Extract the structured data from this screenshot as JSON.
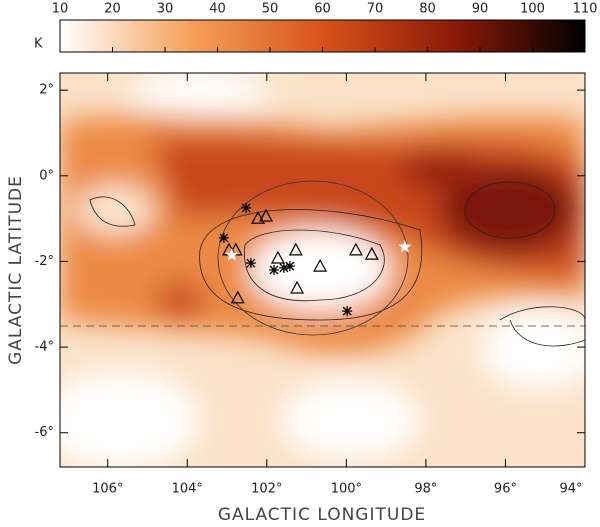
{
  "chart_data": {
    "type": "scatter",
    "xlabel": "GALACTIC LONGITUDE",
    "ylabel": "GALACTIC LATITUDE",
    "xlim": [
      107.2,
      94.0
    ],
    "ylim": [
      -6.8,
      2.4
    ],
    "xticks": [
      {
        "value": 106,
        "label": "106°"
      },
      {
        "value": 104,
        "label": "104°"
      },
      {
        "value": 102,
        "label": "102°"
      },
      {
        "value": 100,
        "label": "100°"
      },
      {
        "value": 98,
        "label": "98°"
      },
      {
        "value": 96,
        "label": "96°"
      },
      {
        "value": 94,
        "label": "94°"
      }
    ],
    "yticks": [
      {
        "value": 2,
        "label": "2°"
      },
      {
        "value": 0,
        "label": "0°"
      },
      {
        "value": -2,
        "label": "-2°"
      },
      {
        "value": -4,
        "label": "-4°"
      },
      {
        "value": -6,
        "label": "-6°"
      }
    ],
    "colorbar": {
      "label": "K",
      "lim": [
        10,
        110
      ],
      "ticks": [
        10,
        20,
        30,
        40,
        50,
        60,
        70,
        80,
        90,
        100,
        110
      ],
      "colors": [
        "#ffffff",
        "#f5a05a",
        "#d8531a",
        "#8c1a08",
        "#000000"
      ]
    },
    "series": [
      {
        "marker": "triangle",
        "color": "#000000",
        "x": [
          102.22,
          102.02,
          102.95,
          102.78,
          101.27,
          101.72,
          100.66,
          99.76,
          99.36,
          101.24,
          102.73
        ],
        "y": [
          -0.99,
          -0.94,
          -1.73,
          -1.73,
          -1.73,
          -1.92,
          -2.11,
          -1.73,
          -1.83,
          -2.62,
          -2.85
        ]
      },
      {
        "marker": "asterisk",
        "color": "#000000",
        "x": [
          102.52,
          103.08,
          102.4,
          101.57,
          101.42,
          101.82,
          99.98
        ],
        "y": [
          -0.75,
          -1.45,
          -2.04,
          -2.15,
          -2.11,
          -2.2,
          -3.16
        ]
      },
      {
        "marker": "star",
        "color": "#ffffff",
        "x": [
          102.88,
          98.53
        ],
        "y": [
          -1.85,
          -1.66
        ]
      }
    ]
  }
}
